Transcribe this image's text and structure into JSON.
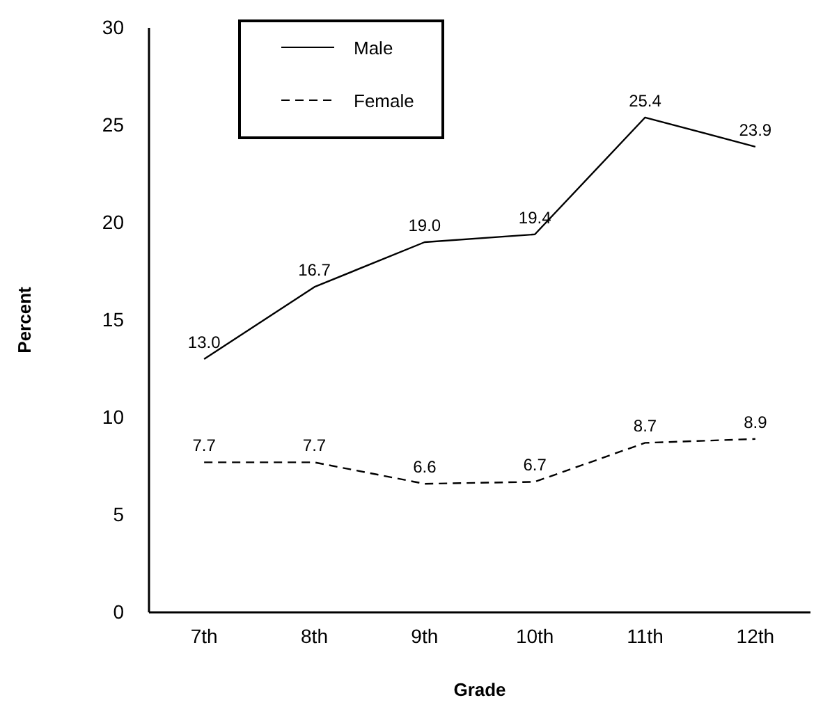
{
  "chart_data": {
    "type": "line",
    "xlabel": "Grade",
    "ylabel": "Percent",
    "categories": [
      "7th",
      "8th",
      "9th",
      "10th",
      "11th",
      "12th"
    ],
    "ylim": [
      0,
      30
    ],
    "yticks": [
      0,
      5,
      10,
      15,
      20,
      25,
      30
    ],
    "series": [
      {
        "name": "Male",
        "color": "#000000",
        "line_style": "solid",
        "values": [
          13.0,
          16.7,
          19.0,
          19.4,
          25.4,
          23.9
        ],
        "value_labels": [
          "13.0",
          "16.7",
          "19.0",
          "19.4",
          "25.4",
          "23.9"
        ]
      },
      {
        "name": "Female",
        "color": "#000000",
        "line_style": "dashed",
        "values": [
          7.7,
          7.7,
          6.6,
          6.7,
          8.7,
          8.9
        ],
        "value_labels": [
          "7.7",
          "7.7",
          "6.6",
          "6.7",
          "8.7",
          "8.9"
        ]
      }
    ],
    "legend": "top left",
    "marker": "none",
    "grid": false
  }
}
